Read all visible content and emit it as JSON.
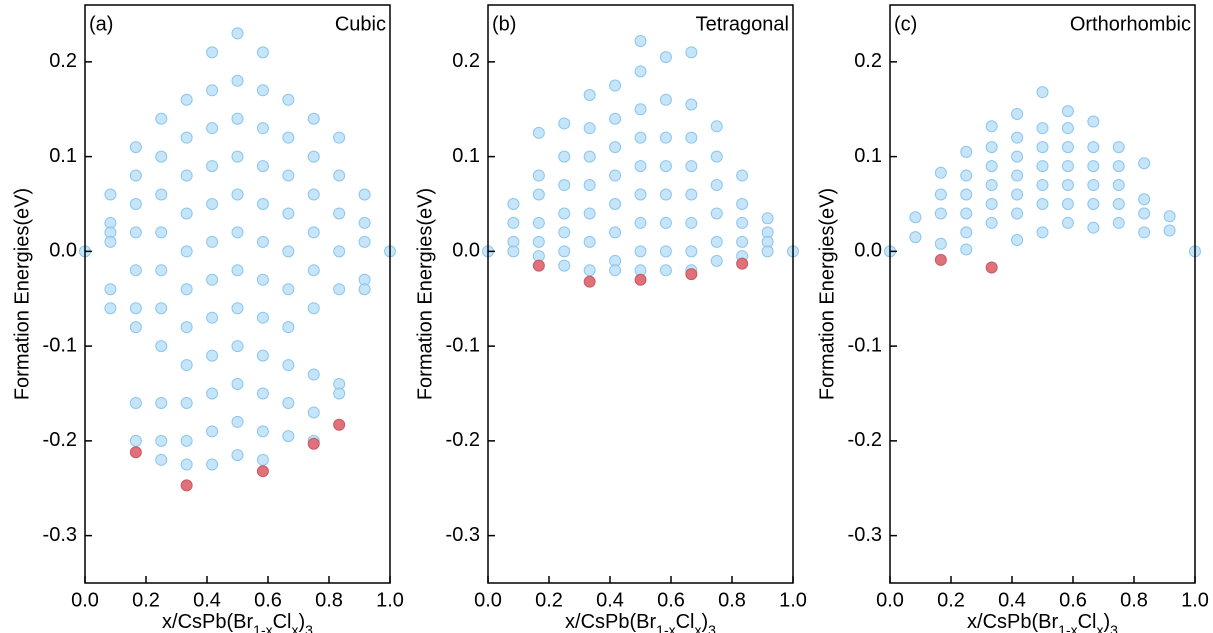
{
  "chart_data": [
    {
      "type": "scatter",
      "label": "(a)",
      "title": "Cubic",
      "xlabel": [
        "x/CsPb(Br",
        "1-x",
        "Cl",
        "x",
        ")",
        "3"
      ],
      "ylabel": "Formation Energies(eV)",
      "xlim": [
        0,
        1
      ],
      "ylim": [
        -0.35,
        0.26
      ],
      "xticks": [
        {
          "value": 0,
          "label": "0.0"
        },
        0.2,
        0.4,
        0.6,
        0.8,
        {
          "value": 1,
          "label": "1.0"
        }
      ],
      "yticks": [
        -0.3,
        -0.2,
        -0.1,
        {
          "value": 0,
          "label": "0.0"
        },
        0.1,
        0.2
      ],
      "color": "#b3dcf7",
      "minima_color": "#e0707a",
      "columns": [
        {
          "x": 0,
          "values": [
            0
          ]
        },
        {
          "x": 0.0833,
          "values": [
            0.06,
            0.03,
            0.02,
            0.01,
            -0.04,
            -0.06
          ]
        },
        {
          "x": 0.1667,
          "values": [
            0.11,
            0.08,
            0.05,
            0.02,
            -0.02,
            -0.06,
            -0.08,
            -0.16,
            -0.2
          ]
        },
        {
          "x": 0.25,
          "values": [
            0.14,
            0.1,
            0.06,
            0.02,
            -0.02,
            -0.06,
            -0.1,
            -0.16,
            -0.2,
            -0.22
          ]
        },
        {
          "x": 0.3333,
          "values": [
            0.16,
            0.12,
            0.08,
            0.04,
            0,
            -0.04,
            -0.08,
            -0.12,
            -0.16,
            -0.2,
            -0.225
          ]
        },
        {
          "x": 0.4167,
          "values": [
            0.21,
            0.17,
            0.13,
            0.09,
            0.05,
            0.01,
            -0.03,
            -0.07,
            -0.11,
            -0.15,
            -0.19,
            -0.225
          ]
        },
        {
          "x": 0.5,
          "values": [
            0.23,
            0.18,
            0.14,
            0.1,
            0.06,
            0.02,
            -0.02,
            -0.06,
            -0.1,
            -0.14,
            -0.18,
            -0.215
          ]
        },
        {
          "x": 0.5833,
          "values": [
            0.21,
            0.17,
            0.13,
            0.09,
            0.05,
            0.01,
            -0.03,
            -0.07,
            -0.11,
            -0.15,
            -0.19,
            -0.22
          ]
        },
        {
          "x": 0.6667,
          "values": [
            0.16,
            0.12,
            0.08,
            0.04,
            0,
            -0.04,
            -0.08,
            -0.12,
            -0.16,
            -0.195
          ]
        },
        {
          "x": 0.75,
          "values": [
            0.14,
            0.1,
            0.06,
            0.02,
            -0.02,
            -0.06,
            -0.13,
            -0.17,
            -0.2
          ]
        },
        {
          "x": 0.8333,
          "values": [
            0.12,
            0.08,
            0.04,
            0,
            -0.04,
            -0.14,
            -0.15
          ]
        },
        {
          "x": 0.9167,
          "values": [
            0.06,
            0.03,
            0.01,
            -0.03,
            -0.04
          ]
        },
        {
          "x": 1,
          "values": [
            0
          ]
        }
      ],
      "minima": {
        "x": [
          0.1667,
          0.3333,
          0.5833,
          0.75,
          0.8333
        ],
        "values": [
          -0.212,
          -0.247,
          -0.232,
          -0.203,
          -0.183
        ]
      }
    },
    {
      "type": "scatter",
      "label": "(b)",
      "title": "Tetragonal",
      "xlabel": [
        "x/CsPb(Br",
        "1-x",
        "Cl",
        "x",
        ")",
        "3"
      ],
      "ylabel": "Formation Energies(eV)",
      "xlim": [
        0,
        1
      ],
      "ylim": [
        -0.35,
        0.26
      ],
      "xticks": [
        {
          "value": 0,
          "label": "0.0"
        },
        0.2,
        0.4,
        0.6,
        0.8,
        {
          "value": 1,
          "label": "1.0"
        }
      ],
      "yticks": [
        -0.3,
        -0.2,
        -0.1,
        {
          "value": 0,
          "label": "0.0"
        },
        0.1,
        0.2
      ],
      "color": "#b3dcf7",
      "minima_color": "#e0707a",
      "columns": [
        {
          "x": 0,
          "values": [
            0
          ]
        },
        {
          "x": 0.0833,
          "values": [
            0.05,
            0.03,
            0.01,
            0
          ]
        },
        {
          "x": 0.1667,
          "values": [
            0.125,
            0.08,
            0.06,
            0.03,
            0.01,
            -0.005
          ]
        },
        {
          "x": 0.25,
          "values": [
            0.135,
            0.1,
            0.07,
            0.04,
            0.02,
            0,
            -0.015
          ]
        },
        {
          "x": 0.3333,
          "values": [
            0.165,
            0.13,
            0.1,
            0.07,
            0.04,
            0.01,
            -0.02
          ]
        },
        {
          "x": 0.4167,
          "values": [
            0.175,
            0.14,
            0.11,
            0.08,
            0.05,
            0.02,
            -0.01,
            -0.02
          ]
        },
        {
          "x": 0.5,
          "values": [
            0.222,
            0.19,
            0.15,
            0.12,
            0.09,
            0.06,
            0.03,
            0,
            -0.02
          ]
        },
        {
          "x": 0.5833,
          "values": [
            0.205,
            0.16,
            0.12,
            0.09,
            0.06,
            0.03,
            0,
            -0.02
          ]
        },
        {
          "x": 0.6667,
          "values": [
            0.21,
            0.155,
            0.12,
            0.09,
            0.06,
            0.03,
            0,
            -0.02
          ]
        },
        {
          "x": 0.75,
          "values": [
            0.132,
            0.1,
            0.07,
            0.04,
            0.01,
            -0.01
          ]
        },
        {
          "x": 0.8333,
          "values": [
            0.08,
            0.05,
            0.03,
            0.01,
            -0.005
          ]
        },
        {
          "x": 0.9167,
          "values": [
            0.035,
            0.02,
            0.01,
            0
          ]
        },
        {
          "x": 1,
          "values": [
            0
          ]
        }
      ],
      "minima": {
        "x": [
          0.1667,
          0.3333,
          0.5,
          0.6667,
          0.8333
        ],
        "values": [
          -0.015,
          -0.032,
          -0.03,
          -0.024,
          -0.013
        ]
      }
    },
    {
      "type": "scatter",
      "label": "(c)",
      "title": "Orthorhombic",
      "xlabel": [
        "x/CsPb(Br",
        "1-x",
        "Cl",
        "x",
        ")",
        "3"
      ],
      "ylabel": "Formation Energies(eV)",
      "xlim": [
        0,
        1
      ],
      "ylim": [
        -0.35,
        0.26
      ],
      "xticks": [
        {
          "value": 0,
          "label": "0.0"
        },
        0.2,
        0.4,
        0.6,
        0.8,
        {
          "value": 1,
          "label": "1.0"
        }
      ],
      "yticks": [
        -0.3,
        -0.2,
        -0.1,
        {
          "value": 0,
          "label": "0.0"
        },
        0.1,
        0.2
      ],
      "color": "#b3dcf7",
      "minima_color": "#e0707a",
      "columns": [
        {
          "x": 0,
          "values": [
            0
          ]
        },
        {
          "x": 0.0833,
          "values": [
            0.036,
            0.015
          ]
        },
        {
          "x": 0.1667,
          "values": [
            0.083,
            0.06,
            0.04,
            0.008
          ]
        },
        {
          "x": 0.25,
          "values": [
            0.105,
            0.08,
            0.06,
            0.04,
            0.02,
            0.002
          ]
        },
        {
          "x": 0.3333,
          "values": [
            0.132,
            0.11,
            0.09,
            0.07,
            0.05,
            0.03
          ]
        },
        {
          "x": 0.4167,
          "values": [
            0.145,
            0.12,
            0.1,
            0.08,
            0.06,
            0.04,
            0.012
          ]
        },
        {
          "x": 0.5,
          "values": [
            0.168,
            0.13,
            0.11,
            0.09,
            0.07,
            0.05,
            0.02
          ]
        },
        {
          "x": 0.5833,
          "values": [
            0.148,
            0.13,
            0.11,
            0.09,
            0.07,
            0.05,
            0.03
          ]
        },
        {
          "x": 0.6667,
          "values": [
            0.137,
            0.11,
            0.09,
            0.07,
            0.05,
            0.025
          ]
        },
        {
          "x": 0.75,
          "values": [
            0.11,
            0.09,
            0.07,
            0.05,
            0.03
          ]
        },
        {
          "x": 0.8333,
          "values": [
            0.093,
            0.055,
            0.04,
            0.02
          ]
        },
        {
          "x": 0.9167,
          "values": [
            0.037,
            0.022
          ]
        },
        {
          "x": 1,
          "values": [
            0
          ]
        }
      ],
      "minima": {
        "x": [
          0.1667,
          0.3333
        ],
        "values": [
          -0.009,
          -0.017
        ]
      }
    }
  ]
}
